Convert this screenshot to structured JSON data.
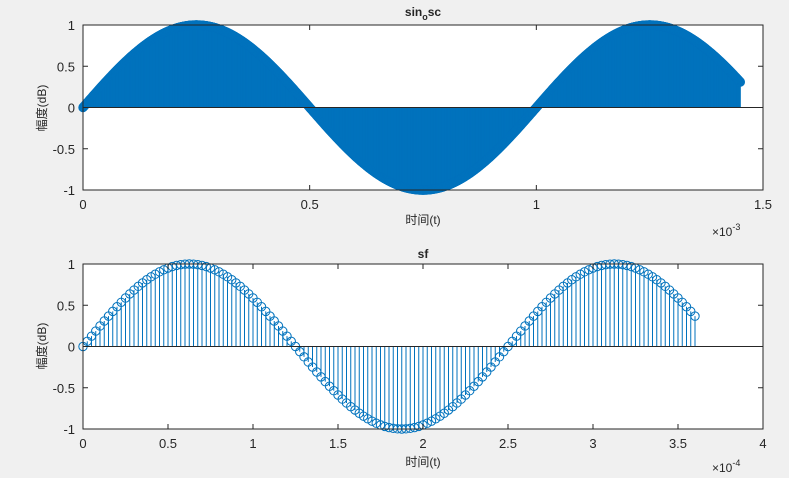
{
  "colors": {
    "series": "#0072bd",
    "axis": "#262626",
    "plot_bg": "#ffffff",
    "figure_bg": "#f0f0f0"
  },
  "chart_data": [
    {
      "type": "stem",
      "title": "sin_osc",
      "title_main": "sin",
      "title_sub": "o",
      "title_tail": "sc",
      "xlabel": "时间(t)",
      "ylabel": "幅度(dB)",
      "xlim": [
        0,
        0.0015
      ],
      "ylim": [
        -1,
        1
      ],
      "x_exponent": "×10",
      "x_exponent_power": "-3",
      "xticks": [
        0,
        0.0005,
        0.001,
        0.0015
      ],
      "xticklabels": [
        "0",
        "0.5",
        "1",
        "1.5"
      ],
      "yticks": [
        -1,
        -0.5,
        0,
        0.5,
        1
      ],
      "yticklabels": [
        "-1",
        "-0.5",
        "0",
        "0.5",
        "1"
      ],
      "grid": false,
      "marker": "circle",
      "series": {
        "function": "sin(2*pi*f*t)",
        "frequency_hz": 1000,
        "t_start": 0,
        "t_end": 0.00145,
        "sample_count": 1451
      }
    },
    {
      "type": "stem",
      "title": "sf",
      "xlabel": "时间(t)",
      "ylabel": "幅度(dB)",
      "xlim": [
        0,
        0.0004
      ],
      "ylim": [
        -1,
        1
      ],
      "x_exponent": "×10",
      "x_exponent_power": "-4",
      "xticks": [
        0,
        5e-05,
        0.0001,
        0.00015,
        0.0002,
        0.00025,
        0.0003,
        0.00035,
        0.0004
      ],
      "xticklabels": [
        "0",
        "0.5",
        "1",
        "1.5",
        "2",
        "2.5",
        "3",
        "3.5",
        "4"
      ],
      "yticks": [
        -1,
        -0.5,
        0,
        0.5,
        1
      ],
      "yticklabels": [
        "-1",
        "-0.5",
        "0",
        "0.5",
        "1"
      ],
      "grid": false,
      "marker": "circle",
      "series": {
        "function": "sin(2*pi*f*t)",
        "frequency_hz": 4000,
        "t_start": 0,
        "t_end": 0.00036,
        "sample_count": 145
      }
    }
  ]
}
